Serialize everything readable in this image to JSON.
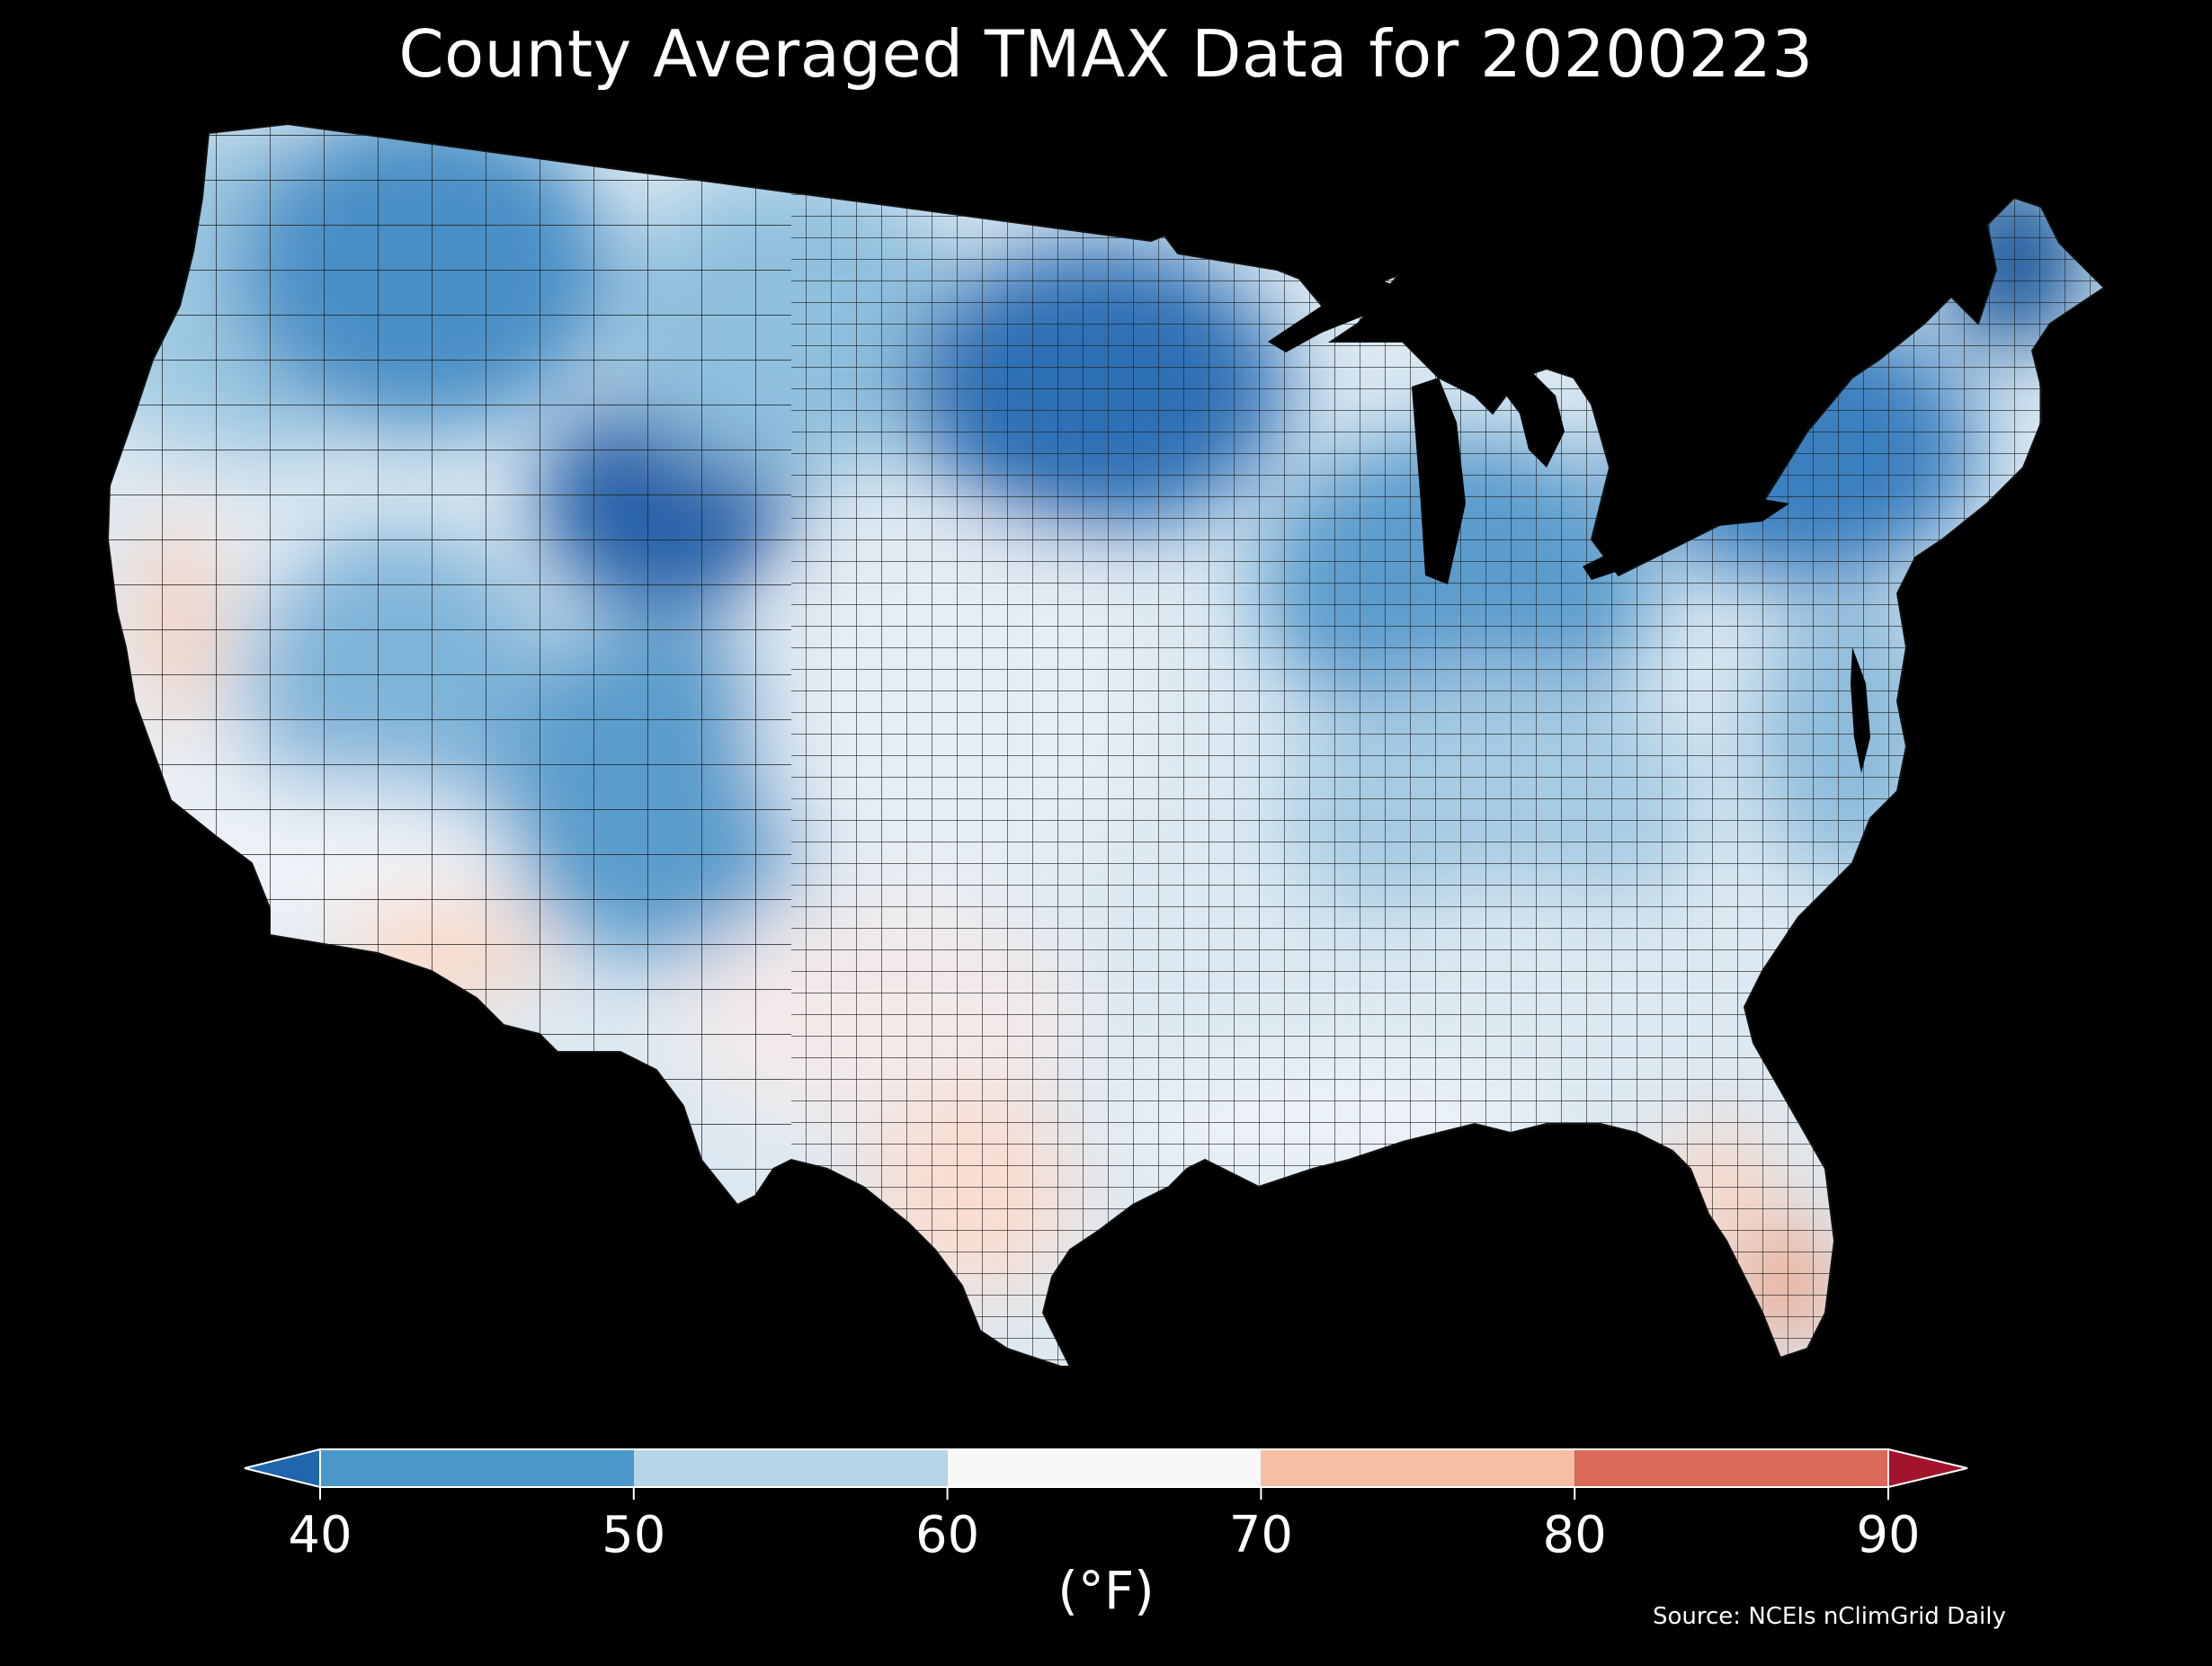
{
  "title": "County Averaged TMAX Data for 20200223",
  "source": "Source: NCEIs nClimGrid Daily",
  "colorbar": {
    "unit": "(°F)",
    "ticks": [
      "40",
      "50",
      "60",
      "70",
      "80",
      "90"
    ],
    "bins": [
      {
        "from": 40,
        "to": 50,
        "color": "#4a98c9"
      },
      {
        "from": 50,
        "to": 60,
        "color": "#b6d6e8"
      },
      {
        "from": 60,
        "to": 70,
        "color": "#f7f7f7"
      },
      {
        "from": 70,
        "to": 80,
        "color": "#f8bea3"
      },
      {
        "from": 80,
        "to": 90,
        "color": "#dc6a58"
      }
    ],
    "under_color": "#2166ac",
    "over_color": "#a2132c",
    "extend": "both"
  },
  "map": {
    "background_color": "#000000",
    "county_border_color": "#222222",
    "regions": [
      {
        "name": "pacific-northwest",
        "color": "#9ec9e2"
      },
      {
        "name": "northern-rockies",
        "color": "#4a8fc6"
      },
      {
        "name": "wyoming-core",
        "color": "#2760a8"
      },
      {
        "name": "california-coast",
        "color": "#e8eff5"
      },
      {
        "name": "central-valley",
        "color": "#f5cdb8"
      },
      {
        "name": "great-basin",
        "color": "#7fb4d9"
      },
      {
        "name": "desert-southwest",
        "color": "#eef3f8"
      },
      {
        "name": "southern-arizona",
        "color": "#fbd9c8"
      },
      {
        "name": "southern-rockies",
        "color": "#5a9ccc"
      },
      {
        "name": "northern-plains",
        "color": "#8fc0de"
      },
      {
        "name": "central-plains",
        "color": "#e6eef5"
      },
      {
        "name": "southern-plains",
        "color": "#f3eaea"
      },
      {
        "name": "south-texas",
        "color": "#f9ddd1"
      },
      {
        "name": "upper-midwest",
        "color": "#2e6fb5"
      },
      {
        "name": "great-lakes",
        "color": "#5b9ccd"
      },
      {
        "name": "ohio-valley",
        "color": "#a6cbe3"
      },
      {
        "name": "southeast",
        "color": "#dce9f2"
      },
      {
        "name": "gulf-coast",
        "color": "#ecf2f7"
      },
      {
        "name": "florida-north",
        "color": "#f9d7c6"
      },
      {
        "name": "florida-south",
        "color": "#ef9c7d"
      },
      {
        "name": "mid-atlantic",
        "color": "#8ebcdc"
      },
      {
        "name": "northeast",
        "color": "#3a7fbf"
      },
      {
        "name": "maine",
        "color": "#1f5a9c"
      }
    ]
  }
}
